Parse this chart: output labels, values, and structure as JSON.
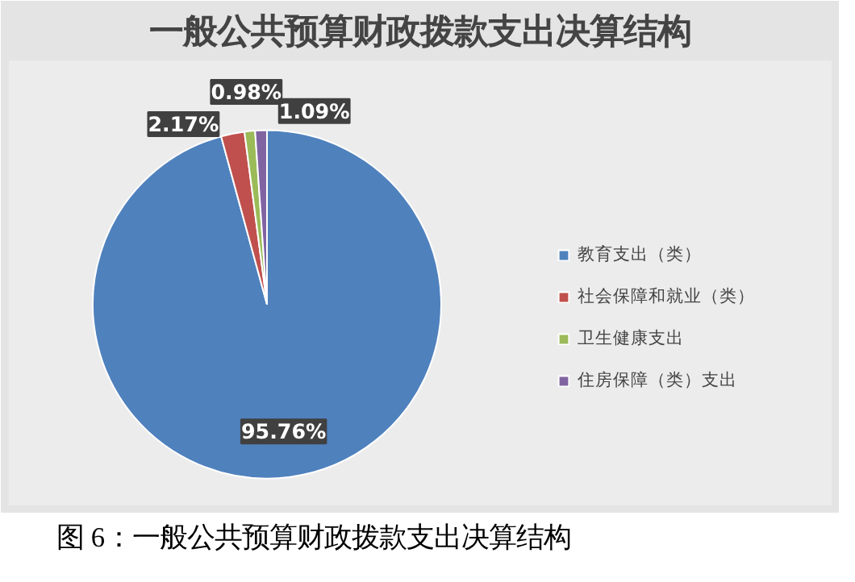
{
  "chart_data": {
    "type": "pie",
    "title": "一般公共预算财政拨款支出决算结构",
    "categories": [
      "教育支出（类）",
      "社会保障和就业（类）",
      "卫生健康支出",
      "住房保障（类）支出"
    ],
    "values": [
      95.76,
      2.17,
      0.98,
      1.09
    ],
    "colors": [
      "#4f81bd",
      "#c0504d",
      "#9bbb59",
      "#8064a2"
    ],
    "value_labels": [
      "95.76%",
      "2.17%",
      "0.98%",
      "1.09%"
    ],
    "legend": "right",
    "annotations": [
      "图 6：一般公共预算财政拨款支出决算结构"
    ]
  }
}
